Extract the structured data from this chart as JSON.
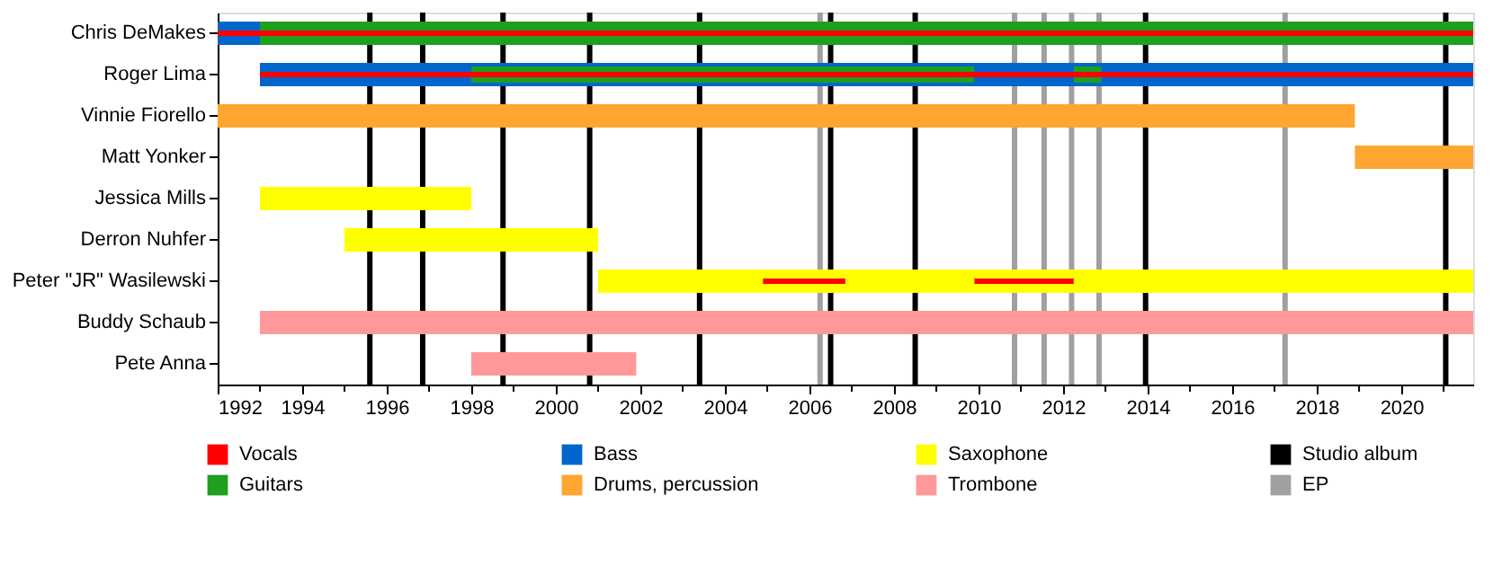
{
  "chart_data": {
    "type": "bar",
    "orientation": "horizontal",
    "categories": [
      "Chris DeMakes",
      "Roger Lima",
      "Vinnie Fiorello",
      "Matt Yonker",
      "Jessica Mills",
      "Derron Nuhfer",
      "Peter \"JR\" Wasilewski",
      "Buddy Schaub",
      "Pete Anna"
    ],
    "series": [
      {
        "name": "Vocals",
        "color": "#ff0000",
        "base": [
          1992,
          1993,
          null,
          null,
          null,
          null,
          2004.9,
          null,
          null
        ],
        "values": [
          29.7,
          28.7,
          null,
          null,
          null,
          null,
          1.95,
          null,
          null
        ]
      },
      {
        "name": "Guitars",
        "color": "#1f9f1f",
        "base": [
          1993,
          null,
          null,
          null,
          null,
          null,
          null,
          null,
          null
        ],
        "values": [
          28.7,
          null,
          null,
          null,
          null,
          null,
          null,
          null,
          null
        ]
      },
      {
        "name": "Bass",
        "color": "#0066cc",
        "base": [
          1992,
          1993,
          null,
          null,
          null,
          null,
          null,
          null,
          null
        ],
        "values": [
          1,
          28.7,
          null,
          null,
          null,
          null,
          null,
          null,
          null
        ]
      },
      {
        "name": "Drums, percussion",
        "color": "#ffa530",
        "base": [
          null,
          null,
          1992,
          2018.9,
          null,
          null,
          null,
          null,
          null
        ],
        "values": [
          null,
          null,
          26.9,
          2.8,
          null,
          null,
          null,
          null,
          null
        ]
      },
      {
        "name": "Saxophone",
        "color": "#ffff00",
        "base": [
          null,
          null,
          null,
          null,
          1993,
          1995,
          2001,
          null,
          null
        ],
        "values": [
          null,
          null,
          null,
          null,
          5,
          6,
          20.7,
          null,
          null
        ]
      },
      {
        "name": "Trombone",
        "color": "#ff9999",
        "base": [
          null,
          null,
          null,
          null,
          null,
          null,
          null,
          1993,
          1998
        ],
        "values": [
          null,
          null,
          null,
          null,
          null,
          null,
          null,
          28.7,
          3.9
        ]
      },
      {
        "color": "#ff0000",
        "base": [
          null,
          null,
          null,
          null,
          null,
          null,
          2009.9,
          null,
          null
        ],
        "values": [
          null,
          null,
          null,
          null,
          null,
          null,
          2.35,
          null,
          null
        ]
      },
      {
        "color": "#1f9f1f",
        "base": [
          null,
          1998,
          null,
          null,
          null,
          null,
          null,
          null,
          null
        ],
        "values": [
          null,
          11.9,
          null,
          null,
          null,
          null,
          null,
          null,
          null
        ]
      },
      {
        "color": "#1f9f1f",
        "base": [
          null,
          2012.25,
          null,
          null,
          null,
          null,
          null,
          null,
          null
        ],
        "values": [
          null,
          0.65,
          null,
          null,
          null,
          null,
          null,
          null,
          null
        ]
      }
    ],
    "xlim": [
      1992,
      2021.7
    ],
    "xticks": [
      1992,
      {
        "value": 1993,
        "label": null
      },
      1994,
      {
        "value": 1995,
        "label": null
      },
      1996,
      {
        "value": 1997,
        "label": null
      },
      1998,
      {
        "value": 1999,
        "label": null
      },
      2000,
      {
        "value": 2001,
        "label": null
      },
      2002,
      {
        "value": 2003,
        "label": null
      },
      2004,
      {
        "value": 2005,
        "label": null
      },
      2006,
      {
        "value": 2007,
        "label": null
      },
      2008,
      {
        "value": 2009,
        "label": null
      },
      2010,
      {
        "value": 2011,
        "label": null
      },
      2012,
      {
        "value": 2013,
        "label": null
      },
      2014,
      {
        "value": 2015,
        "label": null
      },
      2016,
      {
        "value": 2017,
        "label": null
      },
      2018,
      {
        "value": 2019,
        "label": null
      },
      2020,
      {
        "value": 2021,
        "label": null
      }
    ],
    "ref_lines": [
      {
        "axis": "x",
        "value": 1995.6,
        "label": "Studio album",
        "color": "#000000"
      },
      {
        "axis": "x",
        "value": 1996.85,
        "color": "#000000"
      },
      {
        "axis": "x",
        "value": 1998.75,
        "color": "#000000"
      },
      {
        "axis": "x",
        "value": 2000.8,
        "color": "#000000"
      },
      {
        "axis": "x",
        "value": 2003.4,
        "color": "#000000"
      },
      {
        "axis": "x",
        "value": 2006.5,
        "color": "#000000"
      },
      {
        "axis": "x",
        "value": 2008.5,
        "color": "#000000"
      },
      {
        "axis": "x",
        "value": 2013.95,
        "color": "#000000"
      },
      {
        "axis": "x",
        "value": 2021.05,
        "color": "#000000"
      },
      {
        "axis": "x",
        "value": 2006.25,
        "label": "EP",
        "color": "#a0a0a0"
      },
      {
        "axis": "x",
        "value": 2010.85,
        "color": "#a0a0a0"
      },
      {
        "axis": "x",
        "value": 2011.55,
        "color": "#a0a0a0"
      },
      {
        "axis": "x",
        "value": 2012.2,
        "color": "#a0a0a0"
      },
      {
        "axis": "x",
        "value": 2012.85,
        "color": "#a0a0a0"
      },
      {
        "axis": "x",
        "value": 2017.25,
        "color": "#a0a0a0"
      }
    ],
    "grid": false,
    "legend": "bottom"
  }
}
